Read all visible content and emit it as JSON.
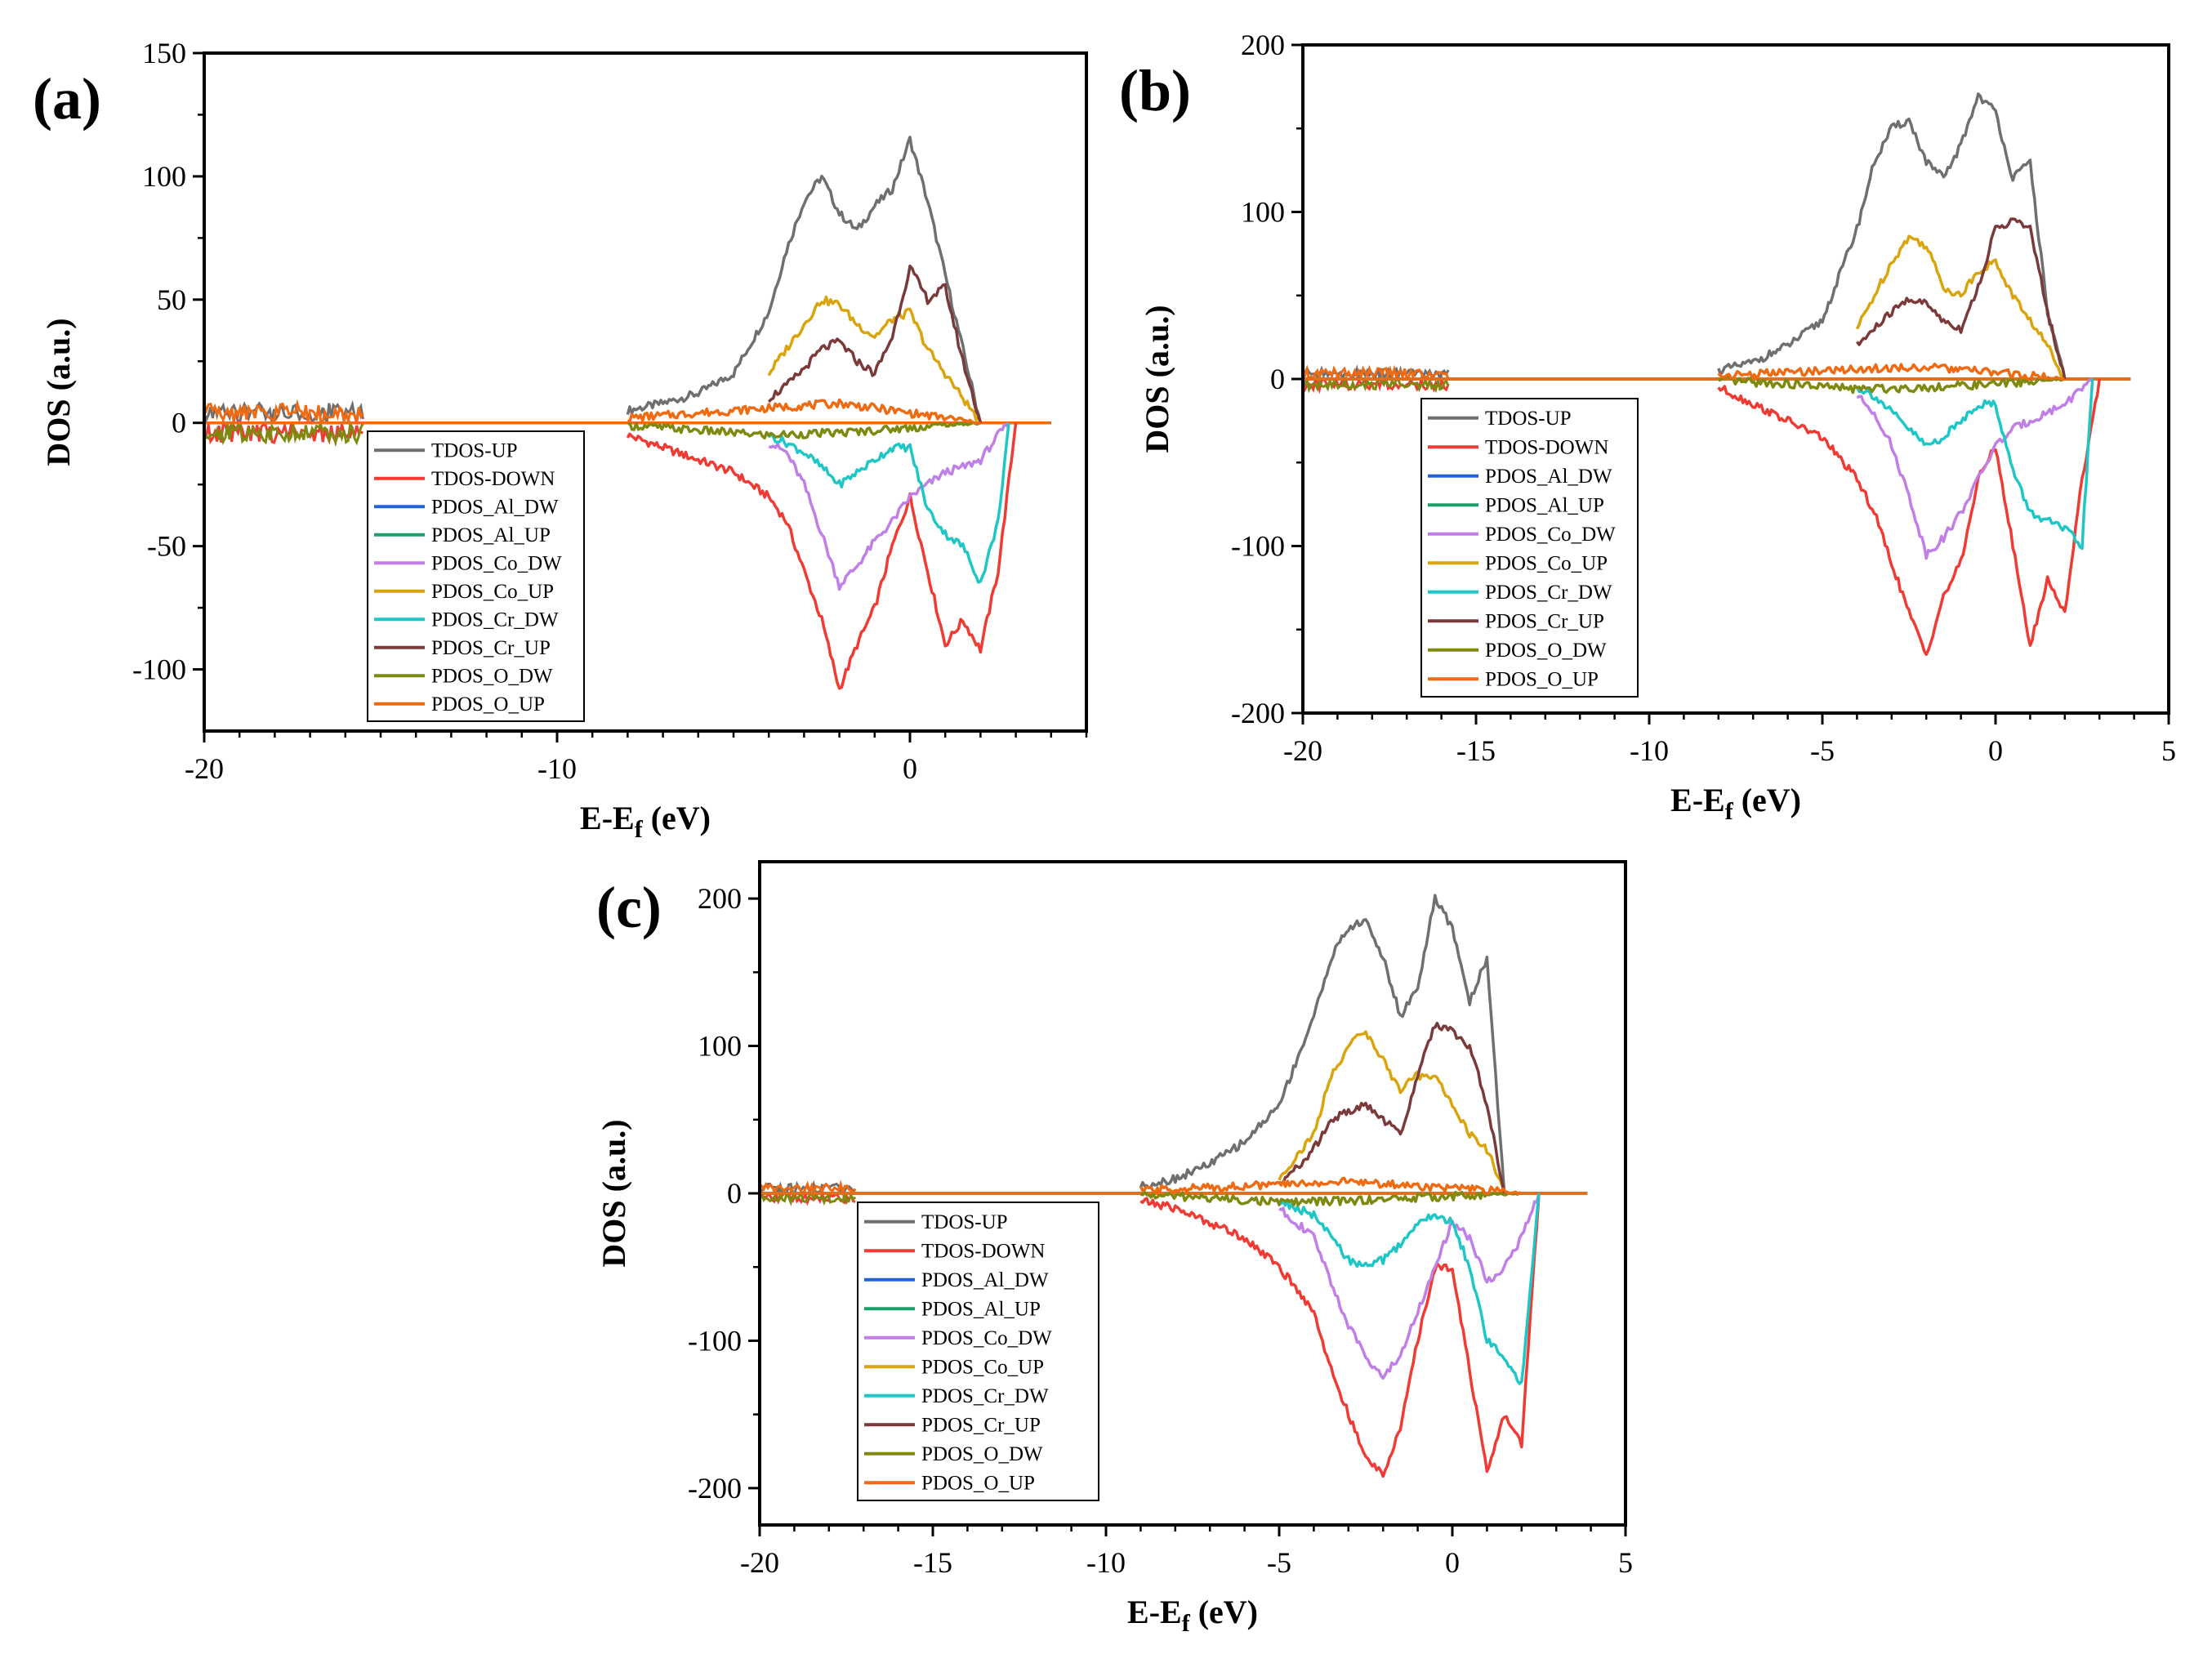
{
  "colors": {
    "TDOS-UP": "#6f6f6f",
    "TDOS-DOWN": "#f03a34",
    "PDOS_Al_DW": "#1f63d6",
    "PDOS_Al_UP": "#1c9e6a",
    "PDOS_Co_DW": "#c07fe6",
    "PDOS_Co_UP": "#d9a40d",
    "PDOS_Cr_DW": "#1fc6c6",
    "PDOS_Cr_UP": "#7a3a3a",
    "PDOS_O_DW": "#7d8a0f",
    "PDOS_O_UP": "#f06a12"
  },
  "chart_data": [
    {
      "panel_label": "(a)",
      "type": "line",
      "xlabel_main": "E-E",
      "xlabel_sub": "f",
      "xlabel_unit": " (eV)",
      "ylabel": "DOS (a.u.)",
      "xlim": [
        -20,
        5
      ],
      "ylim": [
        -125,
        150
      ],
      "xticks": [
        -20,
        -10,
        0
      ],
      "yticks": [
        150,
        100,
        50,
        0,
        -50,
        -100
      ],
      "legend_position": "bottom-center",
      "legend": [
        "TDOS-UP",
        "TDOS-DOWN",
        "PDOS_Al_DW",
        "PDOS_Al_UP",
        "PDOS_Co_DW",
        "PDOS_Co_UP",
        "PDOS_Cr_DW",
        "PDOS_Cr_UP",
        "PDOS_O_DW",
        "PDOS_O_UP"
      ],
      "series": [
        {
          "name": "TDOS-UP",
          "x": [
            -8,
            -7,
            -6,
            -5,
            -4,
            -3.5,
            -3,
            -2.5,
            -2,
            -1.5,
            -1,
            -0.5,
            0,
            0.5,
            1,
            1.5,
            2
          ],
          "y": [
            5,
            8,
            12,
            20,
            45,
            70,
            90,
            100,
            85,
            78,
            88,
            95,
            115,
            90,
            60,
            30,
            0
          ]
        },
        {
          "name": "TDOS-DOWN",
          "x": [
            -8,
            -7,
            -6,
            -5,
            -4,
            -3.5,
            -3,
            -2.5,
            -2,
            -1.5,
            -1,
            -0.5,
            0,
            0.5,
            1,
            1.5,
            2,
            2.5,
            3
          ],
          "y": [
            -5,
            -10,
            -15,
            -20,
            -30,
            -40,
            -60,
            -80,
            -108,
            -90,
            -75,
            -50,
            -30,
            -60,
            -90,
            -80,
            -92,
            -60,
            0
          ]
        },
        {
          "name": "PDOS_Co_DW",
          "x": [
            -4,
            -3.5,
            -3,
            -2.5,
            -2,
            -1.5,
            -1,
            -0.5,
            0,
            0.5,
            1,
            1.5,
            2,
            2.5,
            2.8
          ],
          "y": [
            -8,
            -12,
            -25,
            -45,
            -66,
            -58,
            -48,
            -40,
            -30,
            -25,
            -20,
            -18,
            -15,
            -5,
            0
          ]
        },
        {
          "name": "PDOS_Co_UP",
          "x": [
            -4,
            -3.5,
            -3,
            -2.5,
            -2,
            -1.5,
            -1,
            -0.5,
            0,
            0.5,
            1,
            1.5,
            2
          ],
          "y": [
            20,
            30,
            40,
            50,
            48,
            40,
            35,
            42,
            45,
            30,
            20,
            10,
            0
          ]
        },
        {
          "name": "PDOS_Cr_DW",
          "x": [
            -4,
            -3.5,
            -3,
            -2.5,
            -2,
            -1.5,
            -1,
            -0.5,
            0,
            0.5,
            1,
            1.5,
            2,
            2.5,
            2.8
          ],
          "y": [
            -5,
            -8,
            -12,
            -18,
            -25,
            -20,
            -15,
            -10,
            -10,
            -35,
            -45,
            -50,
            -65,
            -40,
            0
          ]
        },
        {
          "name": "PDOS_Cr_UP",
          "x": [
            -4,
            -3.5,
            -3,
            -2.5,
            -2,
            -1.5,
            -1,
            -0.5,
            0,
            0.5,
            1,
            1.5,
            2
          ],
          "y": [
            10,
            15,
            22,
            30,
            33,
            25,
            20,
            35,
            63,
            50,
            55,
            25,
            0
          ]
        },
        {
          "name": "PDOS_O_DW",
          "x": [
            -8,
            -6,
            -4,
            -2,
            0,
            2
          ],
          "y": [
            -1,
            -3,
            -5,
            -4,
            -2,
            0
          ]
        },
        {
          "name": "PDOS_O_UP",
          "x": [
            -8,
            -6,
            -4,
            -2,
            0,
            2
          ],
          "y": [
            2,
            4,
            6,
            8,
            4,
            0
          ]
        }
      ]
    },
    {
      "panel_label": "(b)",
      "type": "line",
      "xlabel_main": "E-E",
      "xlabel_sub": "f",
      "xlabel_unit": " (eV)",
      "ylabel": "DOS (a.u.)",
      "xlim": [
        -20,
        5
      ],
      "ylim": [
        -200,
        200
      ],
      "xticks": [
        -20,
        -15,
        -10,
        -5,
        0,
        5
      ],
      "yticks": [
        200,
        100,
        0,
        -100,
        -200
      ],
      "legend_position": "bottom-center",
      "legend": [
        "TDOS-UP",
        "TDOS-DOWN",
        "PDOS_Al_DW",
        "PDOS_Al_UP",
        "PDOS_Co_DW",
        "PDOS_Co_UP",
        "PDOS_Cr_DW",
        "PDOS_Cr_UP",
        "PDOS_O_DW",
        "PDOS_O_UP"
      ],
      "series": [
        {
          "name": "TDOS-UP",
          "x": [
            -8,
            -7,
            -6,
            -5,
            -4,
            -3.5,
            -3,
            -2.5,
            -2,
            -1.5,
            -1,
            -0.5,
            0,
            0.5,
            1,
            1.5,
            2
          ],
          "y": [
            5,
            10,
            20,
            35,
            90,
            130,
            150,
            155,
            130,
            120,
            140,
            170,
            160,
            120,
            130,
            40,
            0
          ]
        },
        {
          "name": "TDOS-DOWN",
          "x": [
            -8,
            -7,
            -6,
            -5,
            -4,
            -3.5,
            -3,
            -2.5,
            -2,
            -1.5,
            -1,
            -0.5,
            0,
            0.5,
            1,
            1.5,
            2,
            2.5,
            3
          ],
          "y": [
            -5,
            -15,
            -25,
            -35,
            -60,
            -80,
            -110,
            -140,
            -165,
            -130,
            -110,
            -60,
            -40,
            -100,
            -160,
            -120,
            -140,
            -60,
            0
          ]
        },
        {
          "name": "PDOS_Co_DW",
          "x": [
            -4,
            -3.5,
            -3,
            -2.5,
            -2,
            -1.5,
            -1,
            -0.5,
            0,
            0.5,
            1,
            1.5,
            2,
            2.5,
            2.8
          ],
          "y": [
            -10,
            -20,
            -40,
            -70,
            -105,
            -95,
            -80,
            -60,
            -40,
            -30,
            -25,
            -20,
            -15,
            -5,
            0
          ]
        },
        {
          "name": "PDOS_Co_UP",
          "x": [
            -4,
            -3.5,
            -3,
            -2.5,
            -2,
            -1.5,
            -1,
            -0.5,
            0,
            0.5,
            1,
            1.5,
            2
          ],
          "y": [
            30,
            50,
            70,
            85,
            80,
            55,
            50,
            65,
            70,
            50,
            35,
            20,
            0
          ]
        },
        {
          "name": "PDOS_Cr_DW",
          "x": [
            -4,
            -3.5,
            -3,
            -2.5,
            -2,
            -1.5,
            -1,
            -0.5,
            0,
            0.5,
            1,
            1.5,
            2,
            2.5,
            2.8
          ],
          "y": [
            -5,
            -10,
            -20,
            -30,
            -40,
            -35,
            -25,
            -15,
            -15,
            -55,
            -80,
            -85,
            -90,
            -100,
            0
          ]
        },
        {
          "name": "PDOS_Cr_UP",
          "x": [
            -4,
            -3.5,
            -3,
            -2.5,
            -2,
            -1.5,
            -1,
            -0.5,
            0,
            0.5,
            1,
            1.5,
            2
          ],
          "y": [
            20,
            30,
            40,
            48,
            45,
            35,
            30,
            55,
            90,
            95,
            90,
            40,
            0
          ]
        },
        {
          "name": "PDOS_O_DW",
          "x": [
            -8,
            -6,
            -4,
            -2,
            0,
            2
          ],
          "y": [
            -1,
            -3,
            -6,
            -5,
            -3,
            0
          ]
        },
        {
          "name": "PDOS_O_UP",
          "x": [
            -8,
            -6,
            -4,
            -2,
            0,
            2
          ],
          "y": [
            2,
            4,
            6,
            7,
            4,
            0
          ]
        }
      ]
    },
    {
      "panel_label": "(c)",
      "type": "line",
      "xlabel_main": "E-E",
      "xlabel_sub": "f",
      "xlabel_unit": " (eV)",
      "ylabel": "DOS (a.u.)",
      "xlim": [
        -20,
        5
      ],
      "ylim": [
        -225,
        225
      ],
      "xticks": [
        -20,
        -15,
        -10,
        -5,
        0,
        5
      ],
      "yticks": [
        200,
        100,
        0,
        -100,
        -200
      ],
      "legend_position": "bottom-left",
      "legend": [
        "TDOS-UP",
        "TDOS-DOWN",
        "PDOS_Al_DW",
        "PDOS_Al_UP",
        "PDOS_Co_DW",
        "PDOS_Co_UP",
        "PDOS_Cr_DW",
        "PDOS_Cr_UP",
        "PDOS_O_DW",
        "PDOS_O_UP"
      ],
      "series": [
        {
          "name": "TDOS-UP",
          "x": [
            -9,
            -8,
            -7,
            -6,
            -5,
            -4,
            -3.5,
            -3,
            -2.5,
            -2,
            -1.5,
            -1,
            -0.5,
            0,
            0.5,
            1,
            1.5
          ],
          "y": [
            5,
            10,
            20,
            35,
            60,
            120,
            160,
            180,
            185,
            160,
            120,
            140,
            200,
            180,
            130,
            160,
            0
          ]
        },
        {
          "name": "TDOS-DOWN",
          "x": [
            -9,
            -8,
            -7,
            -6,
            -5,
            -4,
            -3.5,
            -3,
            -2.5,
            -2,
            -1.5,
            -1,
            -0.5,
            0,
            0.5,
            1,
            1.5,
            2,
            2.5
          ],
          "y": [
            -5,
            -10,
            -20,
            -30,
            -50,
            -80,
            -120,
            -150,
            -180,
            -190,
            -160,
            -100,
            -50,
            -50,
            -120,
            -190,
            -150,
            -170,
            0
          ]
        },
        {
          "name": "PDOS_Co_DW",
          "x": [
            -5,
            -4,
            -3.5,
            -3,
            -2.5,
            -2,
            -1.5,
            -1,
            -0.5,
            0,
            0.5,
            1,
            1.5,
            2,
            2.5
          ],
          "y": [
            -10,
            -30,
            -60,
            -90,
            -110,
            -125,
            -110,
            -80,
            -50,
            -20,
            -30,
            -60,
            -50,
            -30,
            0
          ]
        },
        {
          "name": "PDOS_Co_UP",
          "x": [
            -5,
            -4,
            -3.5,
            -3,
            -2.5,
            -2,
            -1.5,
            -1,
            -0.5,
            0,
            0.5,
            1,
            1.5
          ],
          "y": [
            10,
            40,
            80,
            100,
            110,
            90,
            70,
            80,
            80,
            60,
            40,
            30,
            0
          ]
        },
        {
          "name": "PDOS_Cr_DW",
          "x": [
            -5,
            -4,
            -3.5,
            -3,
            -2.5,
            -2,
            -1.5,
            -1,
            -0.5,
            0,
            0.5,
            1,
            1.5,
            2,
            2.5
          ],
          "y": [
            -5,
            -15,
            -30,
            -45,
            -50,
            -45,
            -35,
            -20,
            -15,
            -20,
            -50,
            -100,
            -110,
            -130,
            0
          ]
        },
        {
          "name": "PDOS_Cr_UP",
          "x": [
            -5,
            -4,
            -3.5,
            -3,
            -2.5,
            -2,
            -1.5,
            -1,
            -0.5,
            0,
            0.5,
            1,
            1.5
          ],
          "y": [
            5,
            30,
            50,
            55,
            60,
            50,
            40,
            80,
            115,
            110,
            100,
            60,
            0
          ]
        },
        {
          "name": "PDOS_O_DW",
          "x": [
            -9,
            -7,
            -5,
            -3,
            -1,
            1,
            2
          ],
          "y": [
            -1,
            -3,
            -6,
            -5,
            -3,
            -1,
            0
          ]
        },
        {
          "name": "PDOS_O_UP",
          "x": [
            -9,
            -7,
            -5,
            -3,
            -1,
            1,
            2
          ],
          "y": [
            2,
            4,
            6,
            8,
            5,
            2,
            0
          ]
        }
      ]
    }
  ]
}
